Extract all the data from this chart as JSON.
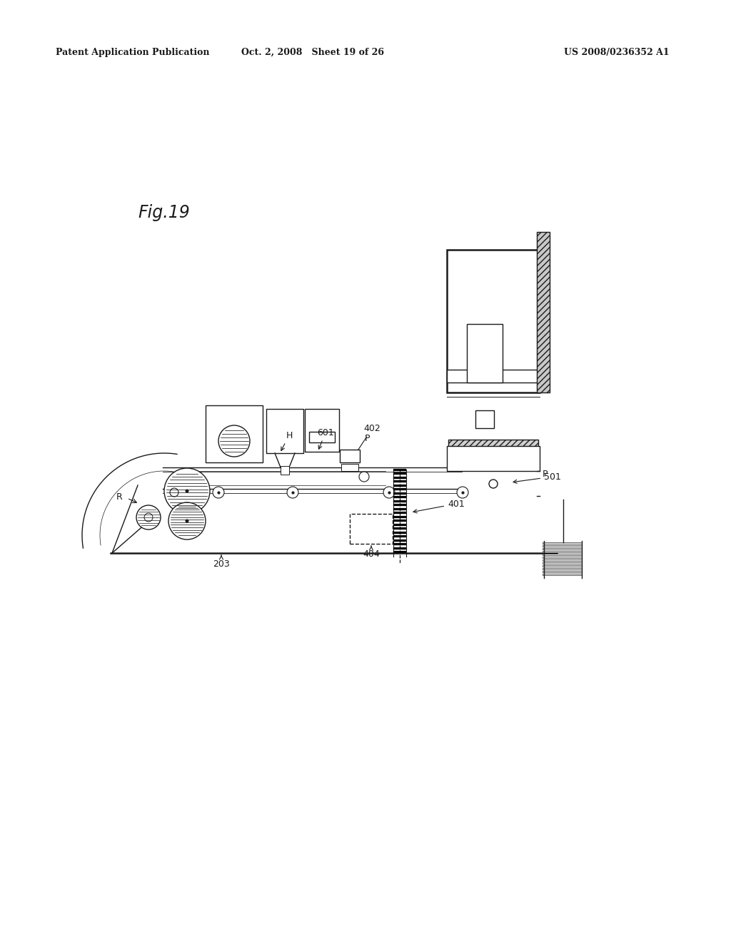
{
  "bg_color": "#ffffff",
  "header_left": "Patent Application Publication",
  "header_mid": "Oct. 2, 2008   Sheet 19 of 26",
  "header_right": "US 2008/0236352 A1",
  "fig_label": "Fig.19",
  "line_color": "#1a1a1a",
  "lw": 1.0,
  "lw_thick": 1.8
}
